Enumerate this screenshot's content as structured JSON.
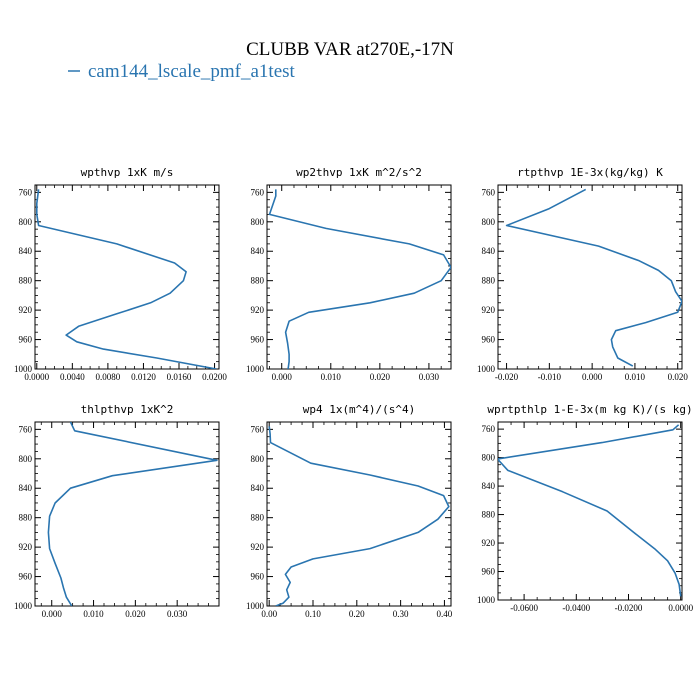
{
  "title": "CLUBB VAR at270E,-17N",
  "legend": {
    "label": "cam144_lscale_pmf_a1test",
    "color": "#2a75b0"
  },
  "chart_data": [
    {
      "type": "line",
      "title": "wpthvp   1xK m/s",
      "xlim": [
        -0.0002,
        0.0205
      ],
      "ylim": [
        1000,
        750
      ],
      "xticks": [
        0.0,
        0.004,
        0.008,
        0.012,
        0.016,
        0.02
      ],
      "xtick_labels": [
        "0.0000",
        "0.0040",
        "0.0080",
        "0.0120",
        "0.0160",
        "0.0200"
      ],
      "yticks": [
        760,
        800,
        840,
        880,
        920,
        960,
        1000
      ],
      "ytick_labels": [
        "760",
        "800",
        "840",
        "880",
        "920",
        "960",
        "1000"
      ],
      "series": [
        {
          "x": [
            0.0002,
            0.0,
            0.0,
            0.0002,
            0.009,
            0.0155,
            0.0168,
            0.0165,
            0.015,
            0.0128,
            0.009,
            0.0047,
            0.0033,
            0.0045,
            0.0075,
            0.0135,
            0.0202
          ],
          "y": [
            756,
            775,
            790,
            805,
            830,
            856,
            868,
            880,
            897,
            910,
            925,
            942,
            954,
            963,
            973,
            985,
            1000
          ]
        }
      ]
    },
    {
      "type": "line",
      "title": "wp2thvp   1xK m^2/s^2",
      "xlim": [
        -0.003,
        0.0345
      ],
      "ylim": [
        1000,
        750
      ],
      "xticks": [
        0.0,
        0.01,
        0.02,
        0.03
      ],
      "xtick_labels": [
        "0.000",
        "0.010",
        "0.020",
        "0.030"
      ],
      "yticks": [
        760,
        800,
        840,
        880,
        920,
        960,
        1000
      ],
      "ytick_labels": [
        "760",
        "800",
        "840",
        "880",
        "920",
        "960",
        "1000"
      ],
      "series": [
        {
          "x": [
            -0.0012,
            -0.0012,
            -0.0025,
            0.009,
            0.026,
            0.033,
            0.0345,
            0.0325,
            0.027,
            0.018,
            0.0055,
            0.0015,
            0.0008,
            0.0012,
            0.0015,
            0.0015,
            0.0013
          ],
          "y": [
            756,
            765,
            790,
            809,
            830,
            845,
            862,
            880,
            897,
            910,
            923,
            935,
            950,
            965,
            980,
            990,
            1000
          ]
        }
      ]
    },
    {
      "type": "line",
      "title": "rtpthvp   1E-3x(kg/kg) K",
      "xlim": [
        -0.022,
        0.021
      ],
      "ylim": [
        1000,
        750
      ],
      "xticks": [
        -0.02,
        -0.01,
        0.0,
        0.01,
        0.02
      ],
      "xtick_labels": [
        "-0.020",
        "-0.010",
        "0.000",
        "0.010",
        "0.020"
      ],
      "yticks": [
        760,
        800,
        840,
        880,
        920,
        960,
        1000
      ],
      "ytick_labels": [
        "760",
        "800",
        "840",
        "880",
        "920",
        "960",
        "1000"
      ],
      "series": [
        {
          "x": [
            -0.0015,
            -0.01,
            -0.02,
            0.0015,
            0.011,
            0.0155,
            0.0185,
            0.0195,
            0.021,
            0.02,
            0.0125,
            0.0055,
            0.0045,
            0.0048,
            0.006,
            0.0095
          ],
          "y": [
            756,
            782,
            805,
            833,
            853,
            866,
            880,
            895,
            908,
            923,
            937,
            948,
            960,
            970,
            985,
            996
          ]
        }
      ]
    },
    {
      "type": "line",
      "title": "thlpthvp   1xK^2",
      "xlim": [
        -0.004,
        0.04
      ],
      "ylim": [
        1000,
        750
      ],
      "xticks": [
        0.0,
        0.01,
        0.02,
        0.03
      ],
      "xtick_labels": [
        "0.000",
        "0.010",
        "0.020",
        "0.030"
      ],
      "yticks": [
        760,
        800,
        840,
        880,
        920,
        960,
        1000
      ],
      "ytick_labels": [
        "760",
        "800",
        "840",
        "880",
        "920",
        "960",
        "1000"
      ],
      "series": [
        {
          "x": [
            0.0045,
            0.0055,
            0.0395,
            0.0145,
            0.0045,
            0.0008,
            -0.0005,
            -0.0008,
            -0.0005,
            0.0008,
            0.0022,
            0.0028,
            0.0035,
            0.0048
          ],
          "y": [
            750,
            762,
            802,
            823,
            840,
            860,
            878,
            900,
            922,
            942,
            962,
            975,
            988,
            1000
          ]
        }
      ]
    },
    {
      "type": "line",
      "title": "wp4   1x(m^4)/(s^4)",
      "xlim": [
        -0.005,
        0.415
      ],
      "ylim": [
        1000,
        750
      ],
      "xticks": [
        0.0,
        0.1,
        0.2,
        0.3,
        0.4
      ],
      "xtick_labels": [
        "0.00",
        "0.10",
        "0.20",
        "0.30",
        "0.40"
      ],
      "yticks": [
        760,
        800,
        840,
        880,
        920,
        960,
        1000
      ],
      "ytick_labels": [
        "760",
        "800",
        "840",
        "880",
        "920",
        "960",
        "1000"
      ],
      "series": [
        {
          "x": [
            0.0,
            0.002,
            0.003,
            0.095,
            0.23,
            0.34,
            0.398,
            0.41,
            0.385,
            0.34,
            0.23,
            0.1,
            0.05,
            0.037,
            0.048,
            0.04,
            0.045,
            0.032,
            0.015
          ],
          "y": [
            756,
            766,
            778,
            806,
            822,
            837,
            850,
            865,
            882,
            900,
            922,
            936,
            947,
            957,
            968,
            978,
            988,
            996,
            1000
          ]
        }
      ]
    },
    {
      "type": "line",
      "title": "wprtpthlp   1-E-3x(m kg K)/(s kg)",
      "xlim": [
        -0.07,
        0.0005
      ],
      "ylim": [
        1000,
        750
      ],
      "xticks": [
        -0.06,
        -0.04,
        -0.02,
        0.0
      ],
      "xtick_labels": [
        "-0.0600",
        "-0.0400",
        "-0.0200",
        "0.0000"
      ],
      "yticks": [
        760,
        800,
        840,
        880,
        920,
        960,
        1000
      ],
      "ytick_labels": [
        "760",
        "800",
        "840",
        "880",
        "920",
        "960",
        "1000"
      ],
      "series": [
        {
          "x": [
            -0.0008,
            -0.003,
            -0.0302,
            -0.0702,
            -0.0662,
            -0.0452,
            -0.0282,
            -0.018,
            -0.01,
            -0.005,
            -0.0022,
            -0.0006,
            0.0
          ],
          "y": [
            754,
            761,
            779,
            802,
            818,
            848,
            875,
            905,
            928,
            945,
            962,
            978,
            995
          ]
        }
      ]
    }
  ]
}
